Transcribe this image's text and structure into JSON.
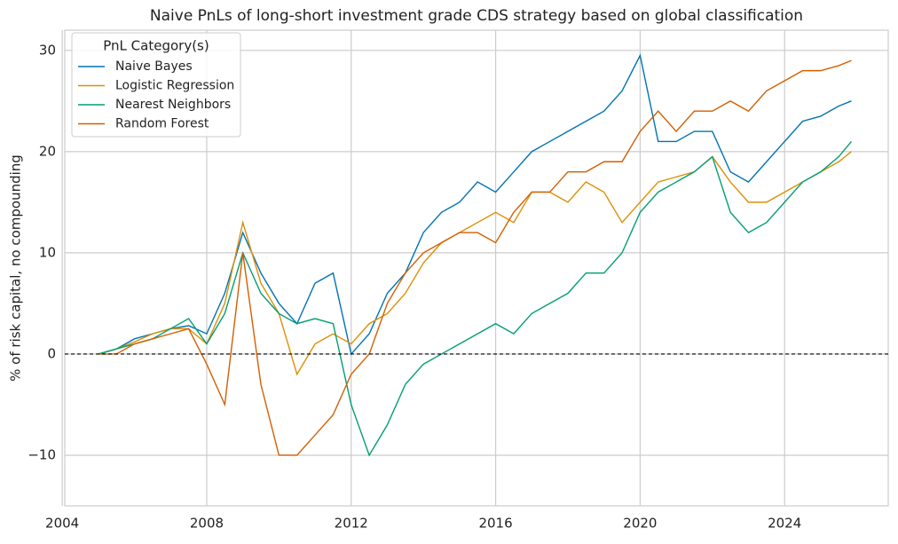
{
  "chart_data": {
    "type": "line",
    "title": "Naive PnLs of long-short investment grade CDS strategy based on global classification",
    "y_label": "% of risk capital, no compounding",
    "x": [
      2005.0,
      2005.5,
      2006.0,
      2006.5,
      2007.0,
      2007.5,
      2008.0,
      2008.5,
      2009.0,
      2009.5,
      2010.0,
      2010.5,
      2011.0,
      2011.5,
      2012.0,
      2012.5,
      2013.0,
      2013.5,
      2014.0,
      2014.5,
      2015.0,
      2015.5,
      2016.0,
      2016.5,
      2017.0,
      2017.5,
      2018.0,
      2018.5,
      2019.0,
      2019.5,
      2020.0,
      2020.5,
      2021.0,
      2021.5,
      2022.0,
      2022.5,
      2023.0,
      2023.5,
      2024.0,
      2024.5,
      2025.0,
      2025.5,
      2025.85
    ],
    "series": [
      {
        "name": "Naive Bayes",
        "color": "#0173b2",
        "values": [
          0,
          0.5,
          1.5,
          2,
          2.5,
          2.8,
          2,
          6,
          12,
          8,
          5,
          3,
          7,
          8,
          0,
          2,
          6,
          8,
          12,
          14,
          15,
          17,
          16,
          18,
          20,
          21,
          22,
          23,
          24,
          26,
          29.5,
          21,
          21,
          22,
          22,
          18,
          17,
          19,
          21,
          23,
          23.5,
          24.5,
          25
        ]
      },
      {
        "name": "Logistic Regression",
        "color": "#de8f05",
        "values": [
          0,
          0.5,
          1.2,
          2,
          2.5,
          2.5,
          1,
          5,
          13,
          7,
          4,
          -2,
          1,
          2,
          1,
          3,
          4,
          6,
          9,
          11,
          12,
          13,
          14,
          13,
          16,
          16,
          15,
          17,
          16,
          13,
          15,
          17,
          17.5,
          18,
          19.5,
          17,
          15,
          15,
          16,
          17,
          18,
          19,
          20
        ]
      },
      {
        "name": "Nearest Neighbors",
        "color": "#029e73",
        "values": [
          0,
          0.5,
          1,
          1.5,
          2.5,
          3.5,
          1,
          4,
          10,
          6,
          4,
          3,
          3.5,
          3,
          -5,
          -10,
          -7,
          -3,
          -1,
          0,
          1,
          2,
          3,
          2,
          4,
          5,
          6,
          8,
          8,
          10,
          14,
          16,
          17,
          18,
          19.5,
          14,
          12,
          13,
          15,
          17,
          18,
          19.5,
          21
        ]
      },
      {
        "name": "Random Forest",
        "color": "#d55e00",
        "values": [
          0,
          0,
          1,
          1.5,
          2,
          2.5,
          -1,
          -5,
          10,
          -3,
          -10,
          -10,
          -8,
          -6,
          -2,
          0,
          5,
          8,
          10,
          11,
          12,
          12,
          11,
          14,
          16,
          16,
          18,
          18,
          19,
          19,
          22,
          24,
          22,
          24,
          24,
          25,
          24,
          26,
          27,
          28,
          28,
          28.5,
          29
        ]
      }
    ],
    "legend_title": "PnL Category(s)",
    "legend": "upper left",
    "hline": 0,
    "xlim": [
      2004.07,
      2026.87
    ],
    "xticks": [
      2004,
      2008,
      2012,
      2016,
      2020,
      2024
    ],
    "ylim": [
      -15,
      32
    ],
    "yticks": [
      {
        "value": -10,
        "label": "−10"
      },
      0,
      10,
      20,
      30
    ],
    "grid": true
  }
}
